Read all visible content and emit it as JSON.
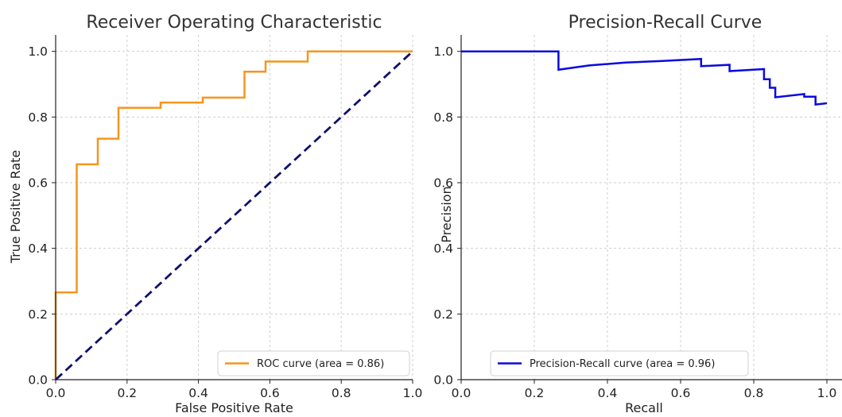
{
  "colors": {
    "roc": "#f5961d",
    "chance": "#10106b",
    "pr": "#0a0adf",
    "axis": "#222222",
    "grid": "#cfcfcf"
  },
  "chart_data": [
    {
      "type": "line",
      "title": "Receiver Operating Characteristic",
      "xlabel": "False Positive Rate",
      "ylabel": "True Positive Rate",
      "xlim": [
        0.0,
        1.0
      ],
      "ylim": [
        0.0,
        1.05
      ],
      "xticks": [
        "0.0",
        "0.2",
        "0.4",
        "0.6",
        "0.8",
        "1.0"
      ],
      "yticks": [
        "0.0",
        "0.2",
        "0.4",
        "0.6",
        "0.8",
        "1.0"
      ],
      "grid": true,
      "legend_position": "lower-right",
      "series": [
        {
          "name": "ROC curve (area = 0.86)",
          "style": "solid",
          "x": [
            0.0,
            0.0,
            0.059,
            0.059,
            0.118,
            0.118,
            0.176,
            0.176,
            0.294,
            0.294,
            0.412,
            0.412,
            0.529,
            0.529,
            0.588,
            0.588,
            0.706,
            0.706,
            1.0
          ],
          "y": [
            0.0,
            0.266,
            0.266,
            0.656,
            0.656,
            0.734,
            0.734,
            0.828,
            0.828,
            0.844,
            0.844,
            0.859,
            0.859,
            0.938,
            0.938,
            0.969,
            0.969,
            1.0,
            1.0
          ]
        },
        {
          "name": "",
          "style": "dashed",
          "x": [
            0.0,
            1.0
          ],
          "y": [
            0.0,
            1.0
          ]
        }
      ]
    },
    {
      "type": "line",
      "title": "Precision-Recall Curve",
      "xlabel": "Recall",
      "ylabel": "Precision",
      "xlim": [
        0.0,
        1.0
      ],
      "ylim": [
        0.0,
        1.05
      ],
      "xticks": [
        "0.0",
        "0.2",
        "0.4",
        "0.6",
        "0.8",
        "1.0"
      ],
      "yticks": [
        "0.0",
        "0.2",
        "0.4",
        "0.6",
        "0.8",
        "1.0"
      ],
      "grid": true,
      "legend_position": "lower-left",
      "series": [
        {
          "name": "Precision-Recall curve (area = 0.96)",
          "style": "solid",
          "x": [
            0.0,
            0.266,
            0.266,
            0.35,
            0.45,
            0.55,
            0.656,
            0.656,
            0.734,
            0.734,
            0.828,
            0.828,
            0.844,
            0.844,
            0.859,
            0.859,
            0.938,
            0.938,
            0.969,
            0.969,
            1.0
          ],
          "y": [
            1.0,
            1.0,
            0.944,
            0.957,
            0.966,
            0.971,
            0.977,
            0.955,
            0.959,
            0.94,
            0.946,
            0.915,
            0.915,
            0.889,
            0.889,
            0.86,
            0.87,
            0.862,
            0.862,
            0.838,
            0.842
          ]
        }
      ]
    }
  ]
}
